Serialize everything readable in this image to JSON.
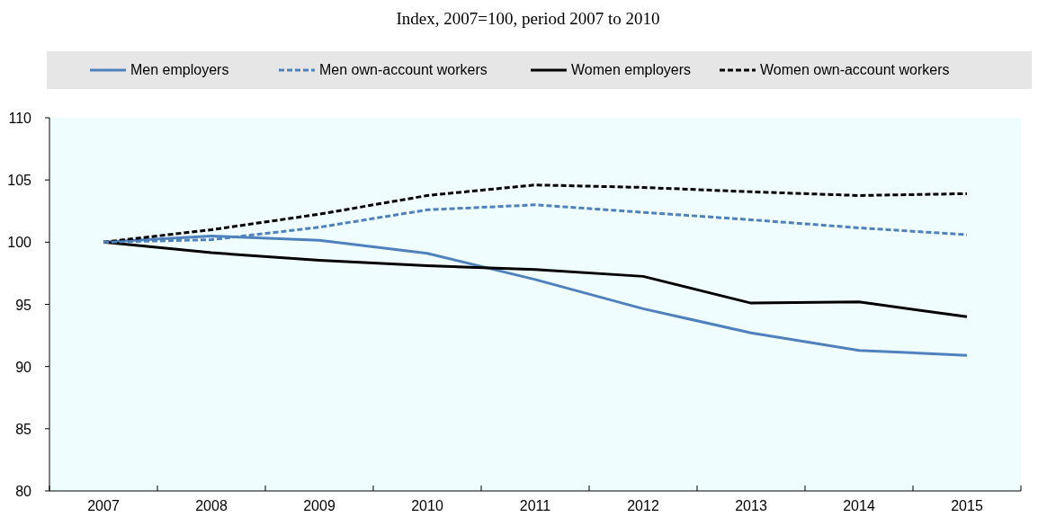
{
  "chart_data": {
    "type": "line",
    "title": "Index, 2007=100, period 2007 to 2010",
    "categories": [
      "2007",
      "2008",
      "2009",
      "2010",
      "2011",
      "2012",
      "2013",
      "2014",
      "2015"
    ],
    "series": [
      {
        "name": "Men employers",
        "color": "#4f81bd",
        "line_style": "solid",
        "values": [
          100,
          100.5,
          100.15,
          99.1,
          97.0,
          94.65,
          92.7,
          91.3,
          90.9
        ]
      },
      {
        "name": "Men own-account workers",
        "color": "#4f81bd",
        "line_style": "dashed",
        "values": [
          100,
          100.2,
          101.2,
          102.6,
          103.0,
          102.4,
          101.8,
          101.15,
          100.6
        ]
      },
      {
        "name": "Women employers",
        "color": "#000000",
        "line_style": "solid",
        "values": [
          100,
          99.15,
          98.55,
          98.1,
          97.8,
          97.25,
          95.1,
          95.2,
          94.0
        ]
      },
      {
        "name": "Women own-account workers",
        "color": "#000000",
        "line_style": "dashed",
        "values": [
          100,
          101.0,
          102.25,
          103.75,
          104.6,
          104.4,
          104.05,
          103.75,
          103.9
        ]
      }
    ],
    "ylim": [
      80,
      110
    ],
    "yticks": [
      80,
      85,
      90,
      95,
      100,
      105,
      110
    ],
    "grid": false,
    "legend": "top"
  }
}
